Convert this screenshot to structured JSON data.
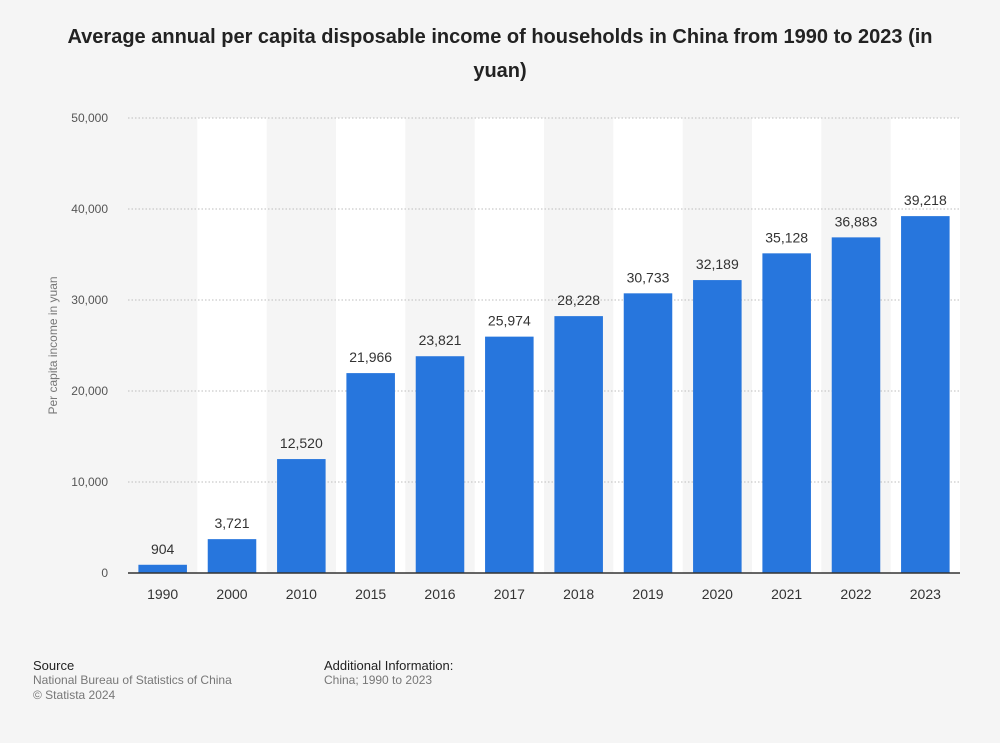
{
  "chart_data": {
    "type": "bar",
    "title": "Average annual per capita disposable income of households in China from 1990 to 2023 (in yuan)",
    "xlabel": "",
    "ylabel": "Per capita income in yuan",
    "categories": [
      "1990",
      "2000",
      "2010",
      "2015",
      "2016",
      "2017",
      "2018",
      "2019",
      "2020",
      "2021",
      "2022",
      "2023"
    ],
    "values": [
      904,
      3721,
      12520,
      21966,
      23821,
      25974,
      28228,
      30733,
      32189,
      35128,
      36883,
      39218
    ],
    "value_labels": [
      "904",
      "3,721",
      "12,520",
      "21,966",
      "23,821",
      "25,974",
      "28,228",
      "30,733",
      "32,189",
      "35,128",
      "36,883",
      "39,218"
    ],
    "ylim": [
      0,
      50000
    ],
    "yticks": [
      0,
      10000,
      20000,
      30000,
      40000,
      50000
    ],
    "ytick_labels": [
      "0",
      "10,000",
      "20,000",
      "30,000",
      "40,000",
      "50,000"
    ],
    "grid": true,
    "bar_color": "#2776dd"
  },
  "footer": {
    "source_heading": "Source",
    "source_line1": "National Bureau of Statistics of China",
    "source_line2": "© Statista 2024",
    "info_heading": "Additional Information:",
    "info_line1": "China; 1990 to 2023"
  }
}
